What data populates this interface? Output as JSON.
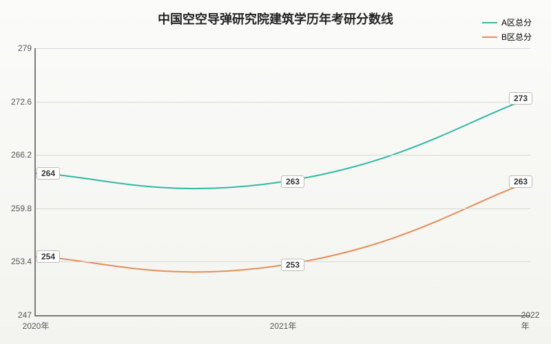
{
  "chart": {
    "type": "line",
    "title": "中国空空导弹研究院建筑学历年考研分数线",
    "title_fontsize": 18,
    "background_gradient": [
      "#fbfbf9",
      "#f3f4ef"
    ],
    "grid_color": "#d8d8d4",
    "axis_color": "#7a7a7a",
    "label_fontsize": 12,
    "x": {
      "categories": [
        "2020年",
        "2021年",
        "2022年"
      ]
    },
    "y": {
      "min": 247,
      "max": 279,
      "ticks": [
        247,
        253.4,
        259.8,
        266.2,
        272.6,
        279
      ]
    },
    "series": [
      {
        "name": "A区总分",
        "color": "#2db9a3",
        "line_width": 2,
        "values": [
          264,
          263,
          273
        ],
        "labels": [
          "264",
          "263",
          "273"
        ]
      },
      {
        "name": "B区总分",
        "color": "#e78b55",
        "line_width": 2,
        "values": [
          254,
          253,
          263
        ],
        "labels": [
          "254",
          "253",
          "263"
        ]
      }
    ],
    "legend": {
      "position": "top-right"
    }
  }
}
